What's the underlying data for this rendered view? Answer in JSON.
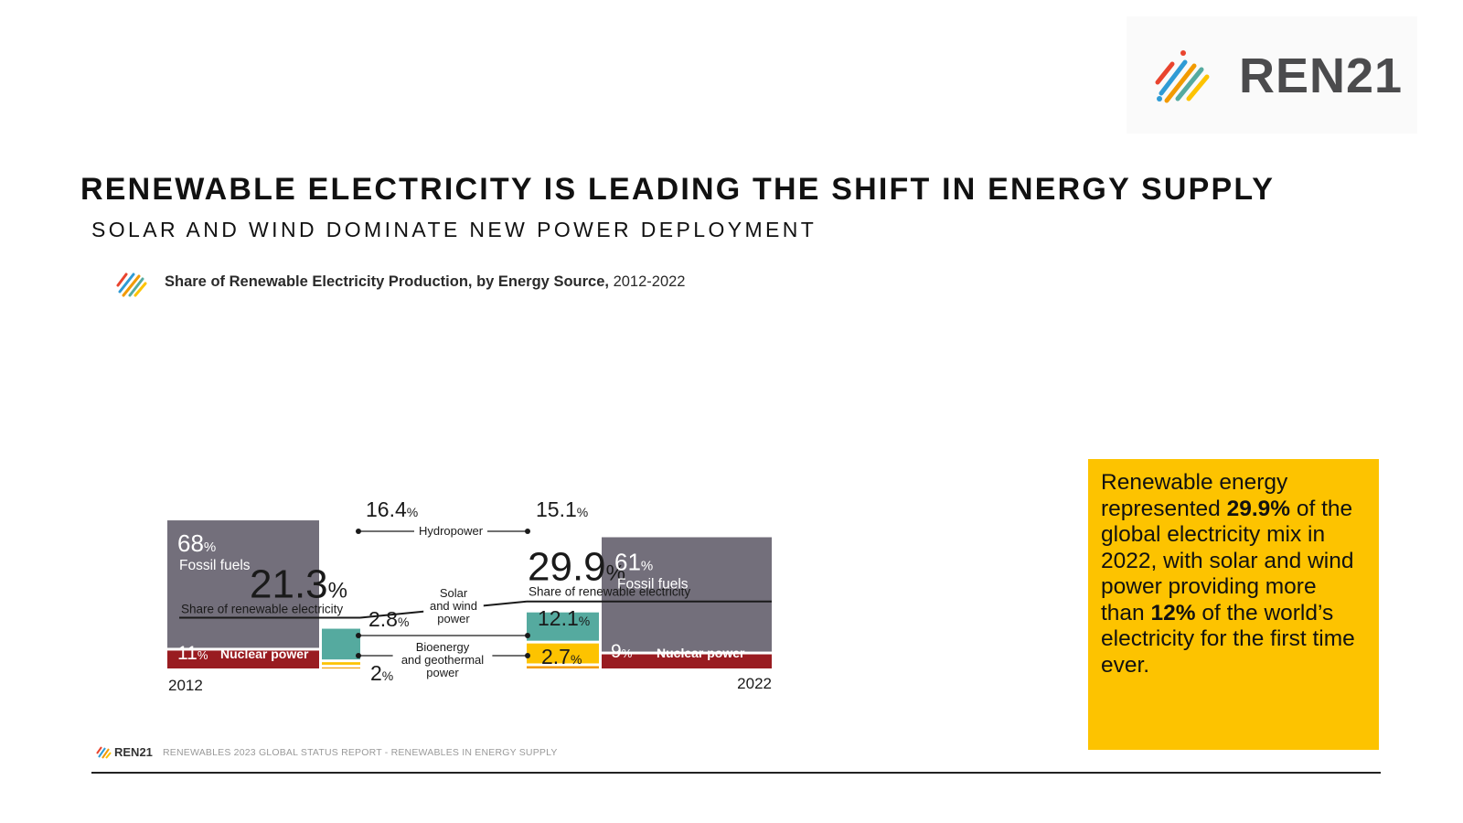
{
  "header": {
    "logo_text_a": "REN",
    "logo_text_b": "21",
    "title": "RENEWABLE ELECTRICITY IS LEADING THE SHIFT IN ENERGY SUPPLY",
    "subtitle": "SOLAR AND WIND DOMINATE NEW POWER DEPLOYMENT"
  },
  "chart_heading": {
    "bold": "Share of Renewable Electricity Production, by Energy Source,",
    "normal": "2012-2022"
  },
  "callout": {
    "t1": "Renewable energy represented ",
    "b1": "29.9%",
    "t2": " of the global electricity mix in 2022, with solar and wind power providing more than ",
    "b2": "12%",
    "t3": " of the world’s electricity for the first time ever."
  },
  "footer": {
    "logo": "REN21",
    "text": "RENEWABLES 2023 GLOBAL STATUS REPORT - RENEWABLES IN ENERGY SUPPLY"
  },
  "colors": {
    "fossil": "#736f7b",
    "nuclear": "#991c21",
    "hydro": "#55aa9f",
    "solarwind": "#fdc300",
    "bio": "#f29a00",
    "callout": "#fdc300"
  },
  "chart_data": {
    "type": "stacked-bar",
    "title": "Share of Renewable Electricity Production, by Energy Source, 2012-2022",
    "unit": "%",
    "years": [
      {
        "year": "2012",
        "renewable_share": 21.3,
        "renewable_share_value": "21.3",
        "renewable_label": "Share of renewable electricity",
        "fossil": 68,
        "fossil_value": "68",
        "fossil_label": "Fossil fuels",
        "nuclear": 11,
        "nuclear_value": "11",
        "nuclear_label": "Nuclear power",
        "hydro": 16.4,
        "hydro_value": "16.4",
        "solarwind": 2.8,
        "solarwind_value": "2.8",
        "bio": 2,
        "bio_value": "2"
      },
      {
        "year": "2022",
        "renewable_share": 29.9,
        "renewable_share_value": "29.9",
        "renewable_label": "Share of renewable electricity",
        "fossil": 61,
        "fossil_value": "61",
        "fossil_label": "Fossil fuels",
        "nuclear": 9,
        "nuclear_value": "9",
        "nuclear_label": "Nuclear power",
        "hydro": 15.1,
        "hydro_value": "15.1",
        "solarwind": 12.1,
        "solarwind_value": "12.1",
        "bio": 2.7,
        "bio_value": "2.7"
      }
    ],
    "categories": [
      {
        "key": "hydro",
        "label": [
          "Hydropower"
        ]
      },
      {
        "key": "solarwind",
        "label": [
          "Solar",
          "and wind",
          "power"
        ]
      },
      {
        "key": "bio",
        "label": [
          "Bioenergy",
          "and geothermal",
          "power"
        ]
      }
    ]
  }
}
